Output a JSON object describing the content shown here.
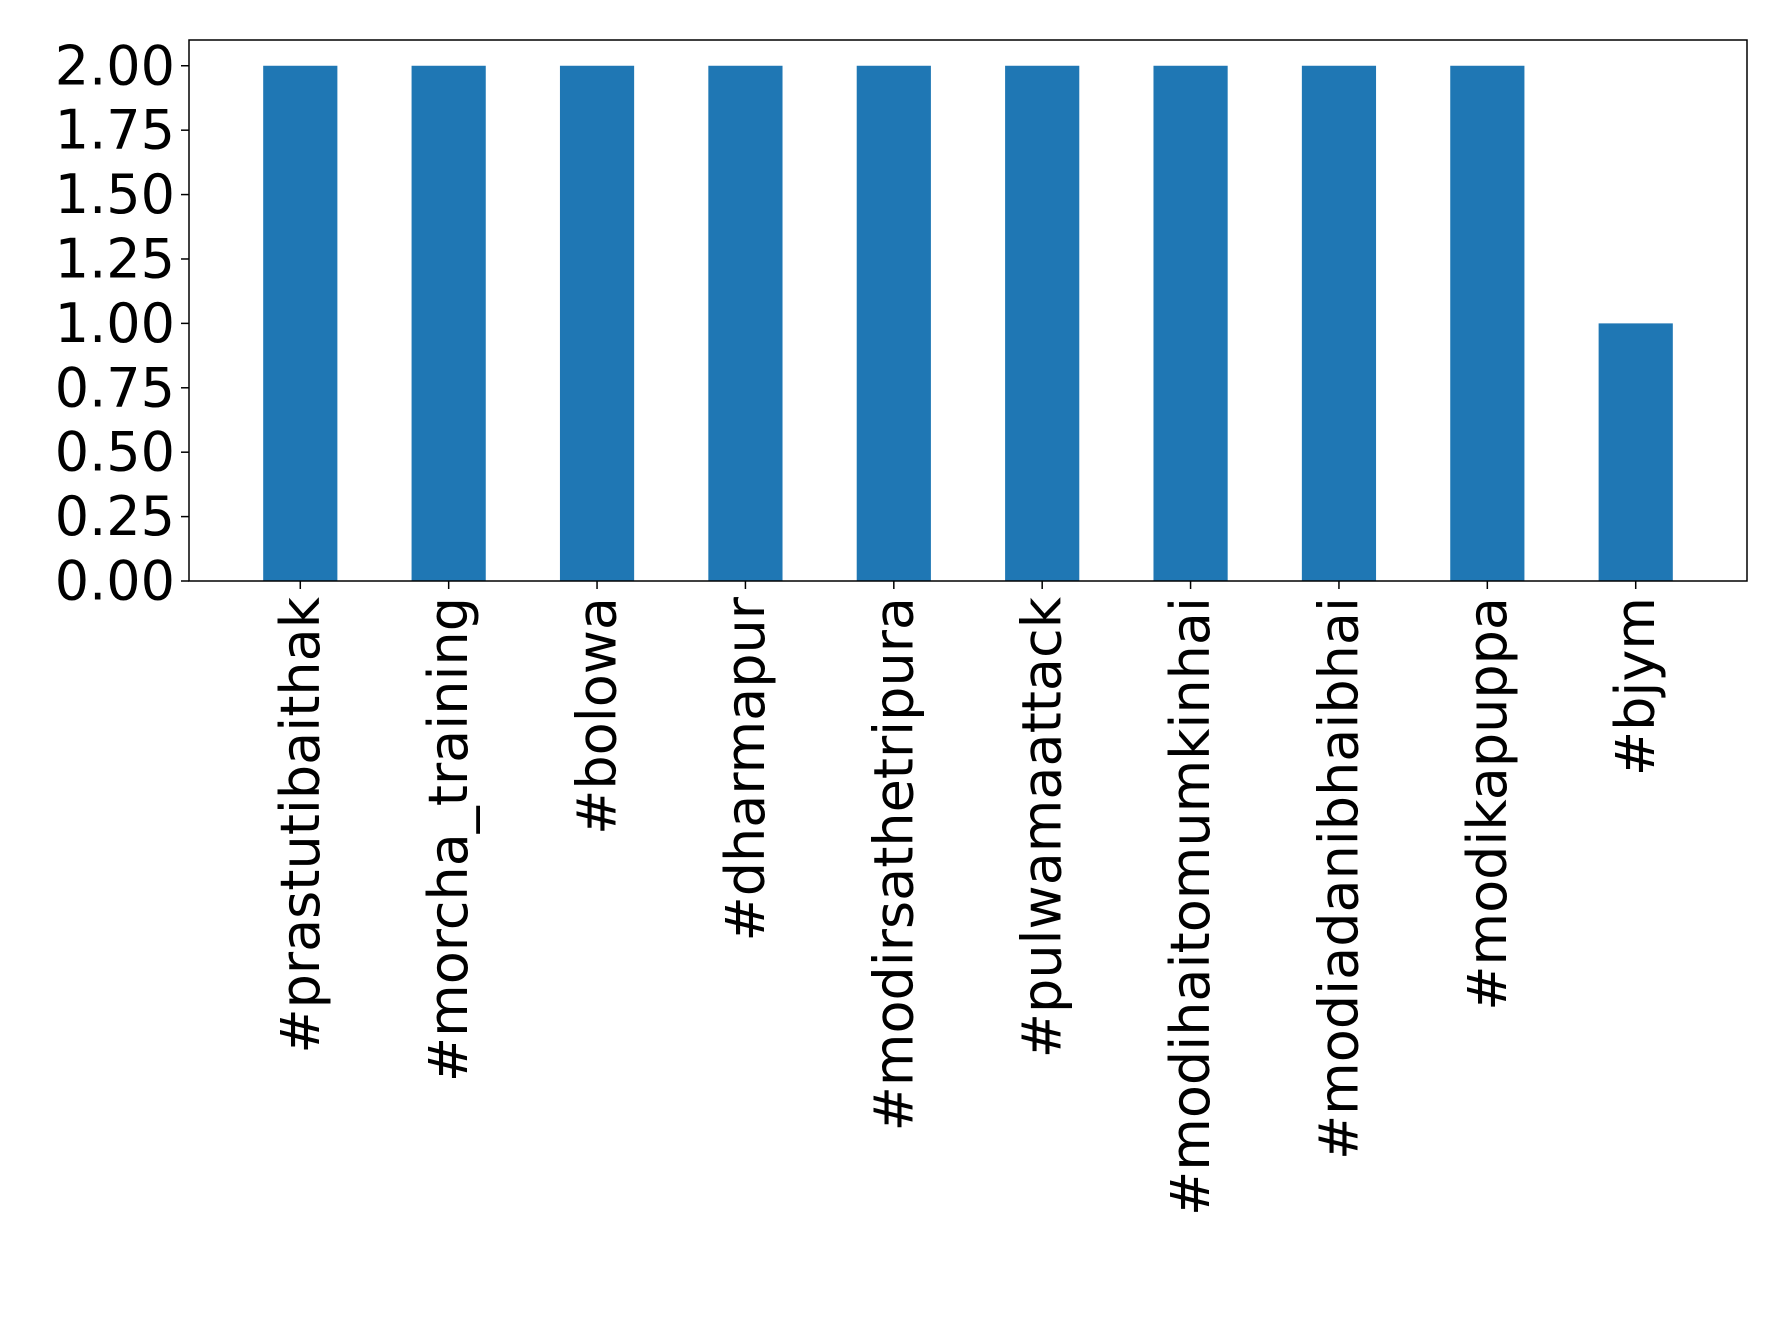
{
  "chart_data": {
    "type": "bar",
    "title": "",
    "xlabel": "",
    "ylabel": "",
    "categories": [
      "#prastutibaithak",
      "#morcha_training",
      "#bolowa",
      "#dharmapur",
      "#modirsathetripura",
      "#pulwamaattack",
      "#modihaitomumkinhai",
      "#modiadanibhaibhai",
      "#modikapuppa",
      "#bjym"
    ],
    "values": [
      2,
      2,
      2,
      2,
      2,
      2,
      2,
      2,
      2,
      1
    ],
    "ylim": [
      0,
      2.1
    ],
    "yticks": [
      "0.00",
      "0.25",
      "0.50",
      "0.75",
      "1.00",
      "1.25",
      "1.50",
      "1.75",
      "2.00"
    ],
    "bar_color": "#1f77b4",
    "grid": false,
    "legend": false
  }
}
